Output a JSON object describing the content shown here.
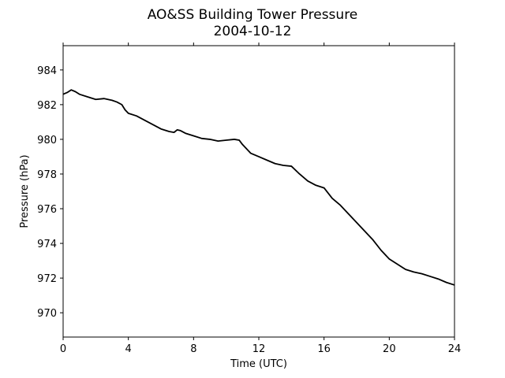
{
  "chart_data": {
    "type": "line",
    "title": "AO&SS Building Tower Pressure",
    "subtitle": "2004-10-12",
    "xlabel": "Time (UTC)",
    "ylabel": "Pressure (hPa)",
    "xlim": [
      0,
      24
    ],
    "ylim": [
      968.6,
      985.4
    ],
    "xticks": [
      0,
      4,
      8,
      12,
      16,
      20,
      24
    ],
    "yticks": [
      970,
      972,
      974,
      976,
      978,
      980,
      982,
      984
    ],
    "grid": false,
    "line_color": "#000000",
    "series": [
      {
        "x": [
          0,
          0.25,
          0.5,
          0.75,
          1.0,
          1.5,
          2.0,
          2.5,
          3.0,
          3.3,
          3.6,
          3.8,
          4.0,
          4.5,
          5.0,
          5.5,
          6.0,
          6.5,
          6.8,
          7.0,
          7.2,
          7.5,
          8.0,
          8.5,
          9.0,
          9.5,
          10.0,
          10.5,
          10.8,
          11.0,
          11.5,
          12.0,
          12.5,
          13.0,
          13.5,
          14.0,
          14.5,
          15.0,
          15.5,
          16.0,
          16.5,
          17.0,
          17.5,
          18.0,
          18.5,
          19.0,
          19.5,
          20.0,
          20.5,
          21.0,
          21.5,
          22.0,
          22.5,
          23.0,
          23.5,
          24.0
        ],
        "y": [
          982.6,
          982.7,
          982.85,
          982.75,
          982.6,
          982.45,
          982.3,
          982.35,
          982.25,
          982.15,
          982.0,
          981.7,
          981.5,
          981.35,
          981.1,
          980.85,
          980.6,
          980.45,
          980.4,
          980.55,
          980.5,
          980.35,
          980.2,
          980.05,
          980.0,
          979.9,
          979.95,
          980.0,
          979.95,
          979.7,
          979.2,
          979.0,
          978.8,
          978.6,
          978.5,
          978.45,
          978.0,
          977.6,
          977.35,
          977.2,
          976.6,
          976.2,
          975.7,
          975.2,
          974.7,
          974.2,
          973.6,
          973.1,
          972.8,
          972.5,
          972.35,
          972.25,
          972.1,
          971.95,
          971.75,
          971.6
        ]
      }
    ]
  }
}
